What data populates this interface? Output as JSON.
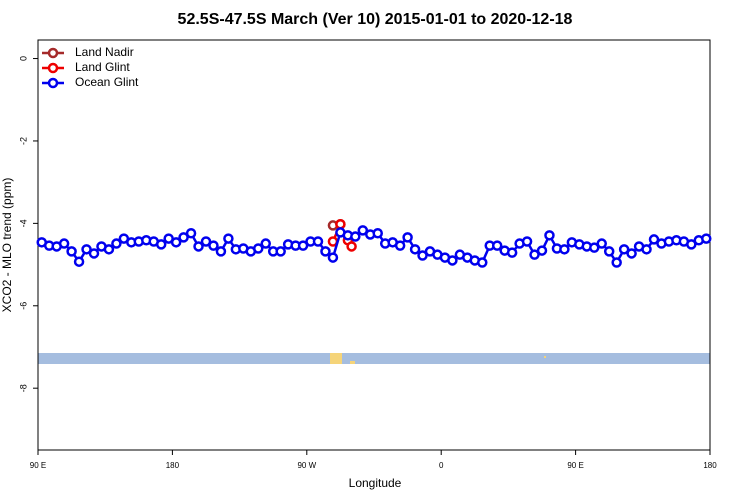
{
  "chart_data": {
    "type": "line",
    "title": "52.5S-47.5S March (Ver 10)   2015-01-01 to 2020-12-18",
    "x_label": "Longitude",
    "y_label": "XCO2 - MLO trend (ppm)",
    "xlim": [
      90,
      540
    ],
    "ylim": [
      -9.5,
      0.45
    ],
    "xticks": [
      {
        "value": 90,
        "label": "90 E"
      },
      {
        "value": 180,
        "label": "180"
      },
      {
        "value": 270,
        "label": "90 W"
      },
      {
        "value": 360,
        "label": "0"
      },
      {
        "value": 450,
        "label": "90 E"
      },
      {
        "value": 540,
        "label": "180"
      }
    ],
    "yticks": [
      0,
      -2,
      -4,
      -6,
      -8
    ],
    "legend": "top-left",
    "series": [
      {
        "name": "Land Nadir",
        "color": "#a52a2a",
        "x": [
          287.5,
          292.5
        ],
        "values": [
          -4.05,
          -4.02
        ]
      },
      {
        "name": "Land Glint",
        "color": "#ee0000",
        "x": [
          287.5,
          292.5,
          297.5,
          300
        ],
        "values": [
          -4.44,
          -4.02,
          -4.41,
          -4.56
        ]
      },
      {
        "name": "Ocean Glint",
        "color": "#0000ee",
        "x": [
          92.5,
          97.5,
          102.5,
          107.5,
          112.5,
          117.5,
          122.5,
          127.5,
          132.5,
          137.5,
          142.5,
          147.5,
          152.5,
          157.5,
          162.5,
          167.5,
          172.5,
          177.5,
          182.5,
          187.5,
          192.5,
          197.5,
          202.5,
          207.5,
          212.5,
          217.5,
          222.5,
          227.5,
          232.5,
          237.5,
          242.5,
          247.5,
          252.5,
          257.5,
          262.5,
          267.5,
          272.5,
          277.5,
          282.5,
          287.5,
          292.5,
          297.5,
          302.5,
          307.5,
          312.5,
          317.5,
          322.5,
          327.5,
          332.5,
          337.5,
          342.5,
          347.5,
          352.5,
          357.5,
          362.5,
          367.5,
          372.5,
          377.5,
          382.5,
          387.5,
          392.5,
          397.5,
          402.5,
          407.5,
          412.5,
          417.5,
          422.5,
          427.5,
          432.5,
          437.5,
          442.5,
          447.5,
          452.5,
          457.5,
          462.5,
          467.5,
          472.5,
          477.5,
          482.5,
          487.5,
          492.5,
          497.5,
          502.5,
          507.5,
          512.5,
          517.5,
          522.5,
          527.5,
          532.5,
          537.5
        ],
        "values": [
          -4.46,
          -4.54,
          -4.56,
          -4.49,
          -4.68,
          -4.93,
          -4.63,
          -4.73,
          -4.56,
          -4.63,
          -4.49,
          -4.37,
          -4.46,
          -4.44,
          -4.41,
          -4.44,
          -4.51,
          -4.37,
          -4.46,
          -4.34,
          -4.24,
          -4.56,
          -4.44,
          -4.54,
          -4.68,
          -4.37,
          -4.63,
          -4.61,
          -4.68,
          -4.61,
          -4.49,
          -4.68,
          -4.68,
          -4.51,
          -4.54,
          -4.54,
          -4.44,
          -4.44,
          -4.68,
          -4.83,
          -4.22,
          -4.29,
          -4.32,
          -4.17,
          -4.27,
          -4.24,
          -4.49,
          -4.46,
          -4.54,
          -4.34,
          -4.63,
          -4.78,
          -4.68,
          -4.76,
          -4.83,
          -4.9,
          -4.76,
          -4.83,
          -4.9,
          -4.95,
          -4.54,
          -4.54,
          -4.66,
          -4.71,
          -4.49,
          -4.44,
          -4.76,
          -4.66,
          -4.29,
          -4.61,
          -4.63,
          -4.46,
          -4.51,
          -4.56,
          -4.59,
          -4.49,
          -4.68,
          -4.95,
          -4.63,
          -4.73,
          -4.56,
          -4.63,
          -4.39,
          -4.49,
          -4.44,
          -4.41,
          -4.44,
          -4.51,
          -4.41,
          -4.37
        ]
      }
    ]
  }
}
